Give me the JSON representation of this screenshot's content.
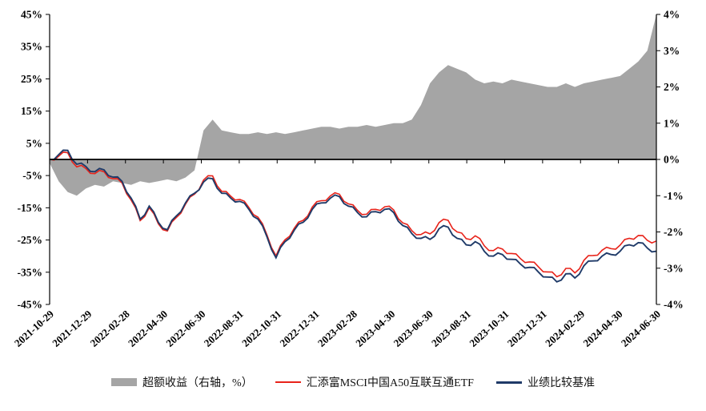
{
  "chart_data": {
    "type": "combo",
    "title": "",
    "grid": false,
    "legend_position": "bottom",
    "x_range": [
      "2021-10-29",
      "2024-06-30"
    ],
    "x_spacing": "even",
    "x_tick_labels": [
      "2021-10-29",
      "2021-12-29",
      "2022-02-28",
      "2022-04-30",
      "2022-06-30",
      "2022-08-31",
      "2022-10-31",
      "2022-12-31",
      "2023-02-28",
      "2023-04-30",
      "2023-06-30",
      "2023-08-31",
      "2023-10-31",
      "2023-12-31",
      "2024-02-29",
      "2024-04-30",
      "2024-06-30"
    ],
    "left_axis": {
      "min": -45,
      "max": 45,
      "tick_values": [
        45,
        35,
        25,
        15,
        5,
        -5,
        -15,
        -25,
        -35,
        -45
      ],
      "tick_labels": [
        "45%",
        "35%",
        "25%",
        "15%",
        "5%",
        "-5%",
        "-15%",
        "-25%",
        "-35%",
        "-45%"
      ]
    },
    "right_axis": {
      "min": -4,
      "max": 4,
      "tick_values": [
        4,
        3,
        2,
        1,
        0,
        -1,
        -2,
        -3,
        -4
      ],
      "tick_labels": [
        "4%",
        "3%",
        "2%",
        "1%",
        "0%",
        "-1%",
        "-2%",
        "-3%",
        "-4%"
      ]
    },
    "series": [
      {
        "name": "超额收益（右轴，%）",
        "type": "area",
        "axis": "right",
        "color": "#a5a5a5",
        "values": [
          -0.1,
          -0.6,
          -0.9,
          -1.0,
          -0.8,
          -0.7,
          -0.75,
          -0.6,
          -0.65,
          -0.7,
          -0.6,
          -0.65,
          -0.6,
          -0.55,
          -0.6,
          -0.5,
          -0.3,
          0.8,
          1.1,
          0.8,
          0.75,
          0.7,
          0.7,
          0.75,
          0.7,
          0.75,
          0.7,
          0.75,
          0.8,
          0.85,
          0.9,
          0.9,
          0.85,
          0.9,
          0.9,
          0.95,
          0.9,
          0.95,
          1.0,
          1.0,
          1.1,
          1.5,
          2.1,
          2.4,
          2.6,
          2.5,
          2.4,
          2.2,
          2.1,
          2.15,
          2.1,
          2.2,
          2.15,
          2.1,
          2.05,
          2.0,
          2.0,
          2.1,
          2.0,
          2.1,
          2.15,
          2.2,
          2.25,
          2.3,
          2.5,
          2.7,
          3.0,
          4.0
        ]
      },
      {
        "name": "汇添富MSCI中国A50互联互通ETF",
        "type": "line",
        "axis": "left",
        "color": "#e8231a",
        "values": [
          0.0,
          1.0,
          2.1,
          -2.3,
          -2.8,
          -4.4,
          -3.8,
          -6.0,
          -7.3,
          -12.6,
          -19.0,
          -15.0,
          -20.0,
          -22.2,
          -18.0,
          -13.9,
          -10.8,
          -6.4,
          -5.1,
          -9.9,
          -11.4,
          -12.4,
          -14.9,
          -17.9,
          -23.4,
          -29.9,
          -24.9,
          -21.4,
          -18.9,
          -14.8,
          -12.8,
          -11.3,
          -10.8,
          -13.8,
          -15.8,
          -17.0,
          -15.5,
          -14.7,
          -15.7,
          -19.7,
          -22.1,
          -23.3,
          -23.1,
          -19.6,
          -18.9,
          -22.5,
          -24.6,
          -23.7,
          -26.8,
          -28.3,
          -27.8,
          -29.2,
          -30.8,
          -31.8,
          -33.4,
          -34.9,
          -36.4,
          -33.8,
          -35.2,
          -31.3,
          -29.8,
          -28.2,
          -27.7,
          -26.6,
          -24.5,
          -23.6,
          -25.1,
          -25.3
        ]
      },
      {
        "name": "业绩比较基准",
        "type": "line",
        "axis": "left",
        "color": "#1f3a68",
        "values": [
          0,
          1.5,
          2.8,
          -1.5,
          -2.2,
          -3.8,
          -3.2,
          -5.5,
          -6.8,
          -12,
          -18.5,
          -14.5,
          -19.5,
          -21.8,
          -17.5,
          -13.5,
          -10.5,
          -7,
          -6,
          -10.5,
          -12,
          -13,
          -15.5,
          -18.5,
          -24,
          -30.5,
          -25.5,
          -22,
          -19.5,
          -15.5,
          -13.5,
          -12,
          -11.5,
          -14.5,
          -16.5,
          -17.8,
          -16.2,
          -15.5,
          -16.5,
          -20.5,
          -23,
          -24.5,
          -24.8,
          -21.5,
          -21,
          -24.5,
          -26.5,
          -25.5,
          -28.5,
          -30,
          -29.5,
          -31,
          -32.5,
          -33.5,
          -35,
          -36.5,
          -38,
          -35.5,
          -36.8,
          -33,
          -31.5,
          -30,
          -29.5,
          -28.5,
          -26.5,
          -25.8,
          -27.5,
          -28.5
        ]
      }
    ]
  }
}
